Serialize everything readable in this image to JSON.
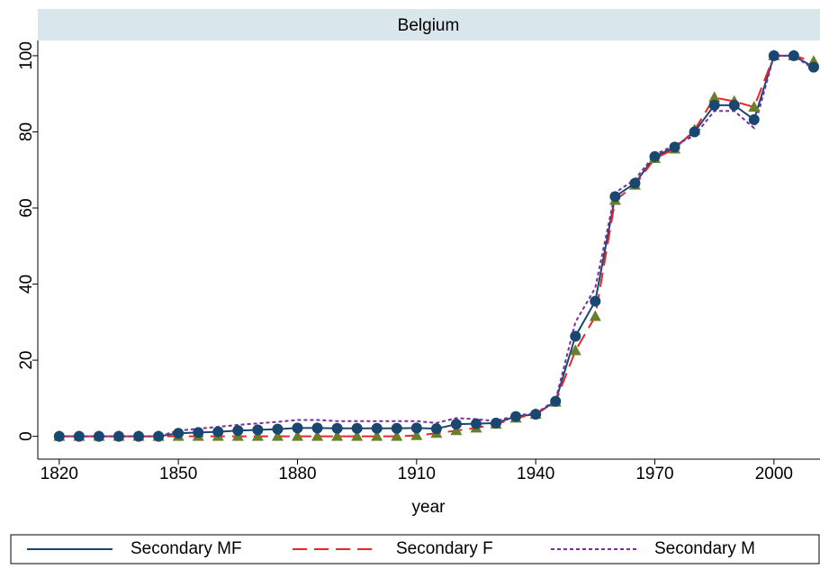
{
  "chart_data": {
    "type": "line",
    "title": "Belgium",
    "x_label": "year",
    "x": [
      1820,
      1825,
      1830,
      1835,
      1840,
      1845,
      1850,
      1855,
      1860,
      1865,
      1870,
      1875,
      1880,
      1885,
      1890,
      1895,
      1900,
      1905,
      1910,
      1915,
      1920,
      1925,
      1930,
      1935,
      1940,
      1945,
      1950,
      1955,
      1960,
      1965,
      1970,
      1975,
      1980,
      1985,
      1990,
      1995,
      2000,
      2005,
      2010
    ],
    "series": [
      {
        "name": "Secondary MF",
        "color": "#1a476f",
        "dash": "solid",
        "marker": "circle",
        "values": [
          0,
          0,
          0,
          0,
          0,
          0,
          0.8,
          1.0,
          1.2,
          1.5,
          1.7,
          1.9,
          2.2,
          2.2,
          2.1,
          2.1,
          2.1,
          2.1,
          2.2,
          2.0,
          3.2,
          3.3,
          3.5,
          5.2,
          5.8,
          9.2,
          26.3,
          35.5,
          63,
          66.5,
          73.5,
          76,
          80,
          87,
          87,
          83.2,
          100,
          100,
          97
        ]
      },
      {
        "name": "Secondary F",
        "color": "#e8262a",
        "dash": "long",
        "marker": "triangle",
        "marker_color": "#6b7f2a",
        "values": [
          0,
          0,
          0,
          0,
          0,
          0,
          0,
          0,
          0,
          0,
          0,
          0,
          0,
          0,
          0,
          0,
          0,
          0,
          0.2,
          0.8,
          1.5,
          2.2,
          3.2,
          4.8,
          5.8,
          9,
          22.5,
          31.5,
          62,
          66,
          73,
          75.5,
          80.5,
          89,
          88,
          86.5,
          100,
          100,
          98.5
        ]
      },
      {
        "name": "Secondary M",
        "color": "#7b2e9e",
        "dash": "short",
        "marker": "none",
        "values": [
          0,
          0,
          0,
          0,
          0,
          0,
          1.5,
          2,
          2.5,
          3,
          3.4,
          3.8,
          4.3,
          4.3,
          4,
          4,
          4,
          4,
          4,
          3.5,
          4.8,
          4.5,
          4,
          5.5,
          6,
          9.5,
          30,
          39,
          64,
          67.5,
          74,
          76.5,
          79,
          85.5,
          85.5,
          81,
          100,
          100,
          96.5
        ]
      }
    ],
    "xlim": [
      1814.6,
      2011.6
    ],
    "xticks": [
      1820,
      1850,
      1880,
      1910,
      1940,
      1970,
      2000
    ],
    "ylim": [
      -6,
      104
    ],
    "yticks": [
      0,
      20,
      40,
      60,
      80,
      100
    ],
    "grid": false,
    "legend": "bottom"
  }
}
